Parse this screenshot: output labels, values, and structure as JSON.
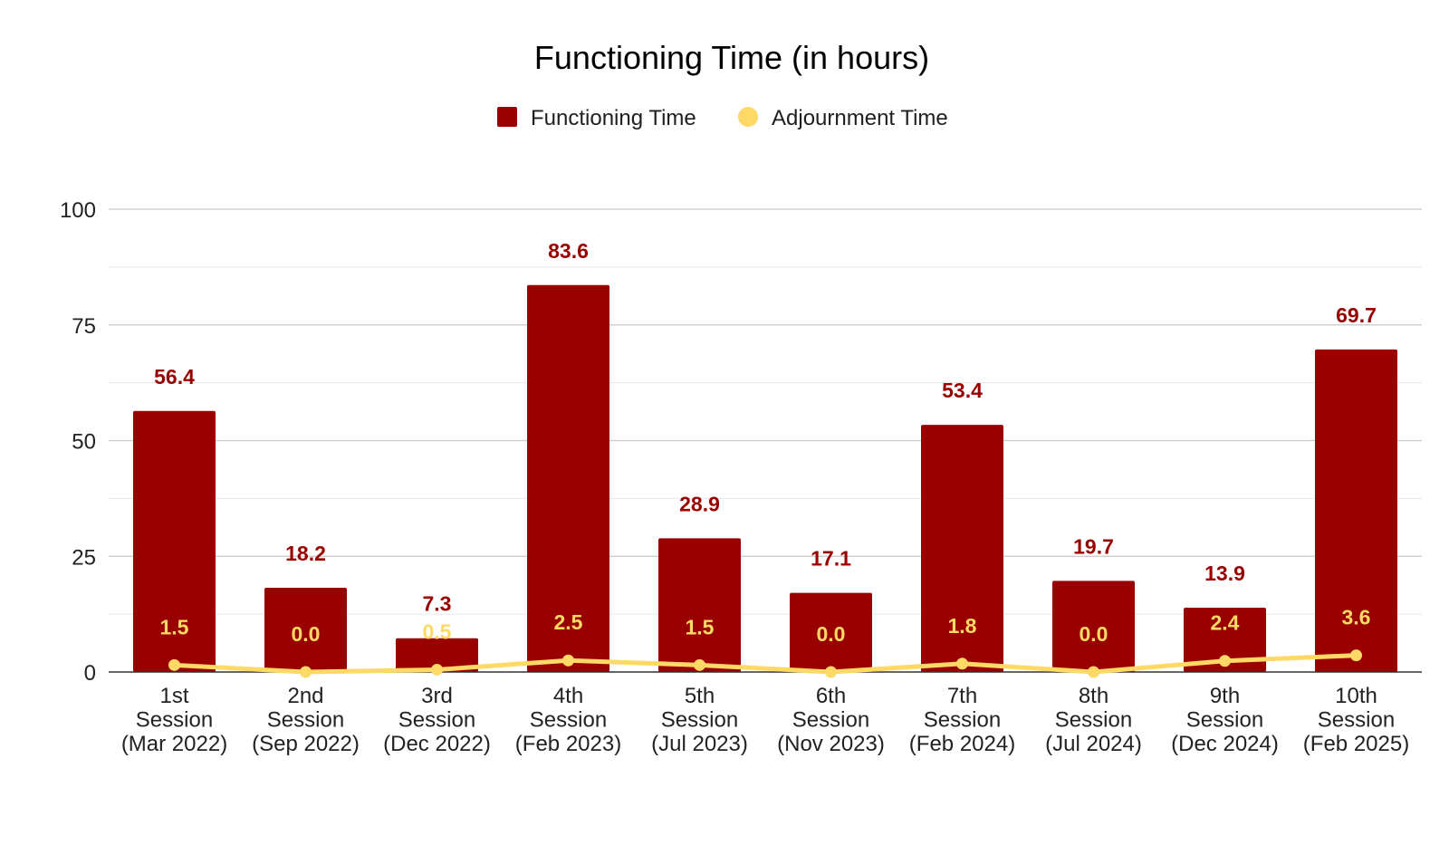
{
  "chart_data": {
    "type": "bar",
    "title": "Functioning Time (in hours)",
    "xlabel": "",
    "ylabel": "",
    "ylim": [
      0,
      100
    ],
    "yticks": [
      0,
      25,
      50,
      75,
      100
    ],
    "grid": true,
    "legend_position": "top",
    "categories": [
      [
        "1st",
        "Session",
        "(Mar 2022)"
      ],
      [
        "2nd",
        "Session",
        "(Sep 2022)"
      ],
      [
        "3rd",
        "Session",
        "(Dec 2022)"
      ],
      [
        "4th",
        "Session",
        "(Feb 2023)"
      ],
      [
        "5th",
        "Session",
        "(Jul 2023)"
      ],
      [
        "6th",
        "Session",
        "(Nov 2023)"
      ],
      [
        "7th",
        "Session",
        "(Feb 2024)"
      ],
      [
        "8th",
        "Session",
        "(Jul 2024)"
      ],
      [
        "9th",
        "Session",
        "(Dec 2024)"
      ],
      [
        "10th",
        "Session",
        "(Feb 2025)"
      ]
    ],
    "series": [
      {
        "name": "Functioning Time",
        "type": "bar",
        "color": "#990000",
        "values": [
          56.4,
          18.2,
          7.3,
          83.6,
          28.9,
          17.1,
          53.4,
          19.7,
          13.9,
          69.7
        ],
        "labels": [
          "56.4",
          "18.2",
          "7.3",
          "83.6",
          "28.9",
          "17.1",
          "53.4",
          "19.7",
          "13.9",
          "69.7"
        ]
      },
      {
        "name": "Adjournment Time",
        "type": "line",
        "color": "#ffd966",
        "values": [
          1.5,
          0.0,
          0.5,
          2.5,
          1.5,
          0.0,
          1.8,
          0.0,
          2.4,
          3.6
        ],
        "labels": [
          "1.5",
          "0.0",
          "0.5",
          "2.5",
          "1.5",
          "0.0",
          "1.8",
          "0.0",
          "2.4",
          "3.6"
        ]
      }
    ]
  }
}
